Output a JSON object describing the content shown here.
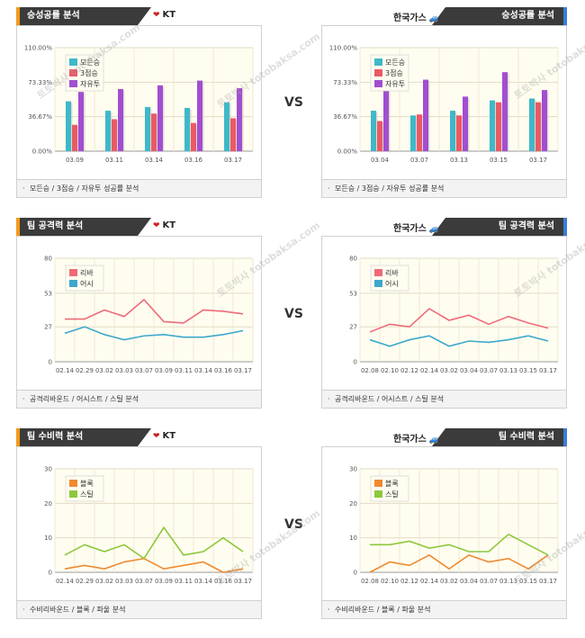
{
  "vs_label": "VS",
  "watermark": "토토박사 totobaksa.com",
  "sections": [
    {
      "left": {
        "title": "승성공률 분석",
        "team": "KT",
        "footer": "모든승 / 3점승 / 자유투 성공률 분석"
      },
      "right": {
        "title": "승성공률 분석",
        "team": "한국가스",
        "footer": "모든승 / 3점승 / 자유투 성공률 분석"
      }
    },
    {
      "left": {
        "title": "팀 공격력 분석",
        "team": "KT",
        "footer": "공격리바운드 / 어시스트 / 스틸 분석"
      },
      "right": {
        "title": "팀 공격력 분석",
        "team": "한국가스",
        "footer": "공격리바운드 / 어시스트 / 스틸 분석"
      }
    },
    {
      "left": {
        "title": "팀 수비력 분석",
        "team": "KT",
        "footer": "수비리바운드 / 블록 / 파울 분석"
      },
      "right": {
        "title": "팀 수비력 분석",
        "team": "한국가스",
        "footer": "수비리바운드 / 블록 / 파울 분석"
      }
    }
  ],
  "chart_data": [
    {
      "type": "bar",
      "categories": [
        "03.09",
        "03.11",
        "03.14",
        "03.16",
        "03.17"
      ],
      "ylim": [
        0,
        110
      ],
      "yticks": [
        "0.00%",
        "36.67%",
        "73.33%",
        "110.00%"
      ],
      "ytick_values": [
        0,
        36.67,
        73.33,
        110
      ],
      "legend": "top-left",
      "series": [
        {
          "name": "모든승",
          "color": "#3fb8c8",
          "values": [
            53,
            43,
            47,
            46,
            52
          ]
        },
        {
          "name": "3점승",
          "color": "#ea5a64",
          "values": [
            28,
            34,
            40,
            30,
            35
          ]
        },
        {
          "name": "자유투",
          "color": "#a24ed0",
          "values": [
            63,
            66,
            70,
            75,
            67
          ]
        }
      ]
    },
    {
      "type": "bar",
      "categories": [
        "03.04",
        "03.07",
        "03.13",
        "03.15",
        "03.17"
      ],
      "ylim": [
        0,
        110
      ],
      "yticks": [
        "0.00%",
        "36.67%",
        "73.33%",
        "110.00%"
      ],
      "ytick_values": [
        0,
        36.67,
        73.33,
        110
      ],
      "legend": "top-left",
      "series": [
        {
          "name": "모든승",
          "color": "#3fb8c8",
          "values": [
            43,
            38,
            43,
            54,
            56
          ]
        },
        {
          "name": "3점승",
          "color": "#ea5a64",
          "values": [
            32,
            39,
            38,
            52,
            52
          ]
        },
        {
          "name": "자유투",
          "color": "#a24ed0",
          "values": [
            65,
            76,
            58,
            84,
            65
          ]
        }
      ]
    },
    {
      "type": "line",
      "categories": [
        "02.14",
        "02.29",
        "03.02",
        "03.03",
        "03.07",
        "03.09",
        "03.11",
        "03.14",
        "03.16",
        "03.17"
      ],
      "ylim": [
        0,
        80
      ],
      "yticks": [
        "0",
        "27",
        "53",
        "80"
      ],
      "ytick_values": [
        0,
        27,
        53,
        80
      ],
      "legend": "top-left",
      "series": [
        {
          "name": "리바",
          "color": "#ee6a78",
          "values": [
            33,
            33,
            40,
            35,
            48,
            31,
            30,
            40,
            39,
            37
          ]
        },
        {
          "name": "어시",
          "color": "#3ca8cc",
          "values": [
            22,
            27,
            21,
            17,
            20,
            21,
            19,
            19,
            21,
            24
          ]
        }
      ]
    },
    {
      "type": "line",
      "categories": [
        "02.08",
        "02.10",
        "02.12",
        "02.14",
        "03.02",
        "03.04",
        "03.07",
        "03.13",
        "03.15",
        "03.17"
      ],
      "ylim": [
        0,
        80
      ],
      "yticks": [
        "0",
        "27",
        "53",
        "80"
      ],
      "ytick_values": [
        0,
        27,
        53,
        80
      ],
      "legend": "top-left",
      "series": [
        {
          "name": "리바",
          "color": "#ee6a78",
          "values": [
            23,
            29,
            27,
            41,
            32,
            36,
            29,
            35,
            30,
            26
          ]
        },
        {
          "name": "어시",
          "color": "#3ca8cc",
          "values": [
            17,
            12,
            17,
            20,
            12,
            16,
            15,
            17,
            20,
            16
          ]
        }
      ]
    },
    {
      "type": "line",
      "categories": [
        "02.14",
        "02.29",
        "03.02",
        "03.03",
        "03.07",
        "03.09",
        "03.11",
        "03.14",
        "03.16",
        "03.17"
      ],
      "ylim": [
        0,
        30
      ],
      "yticks": [
        "0",
        "10",
        "20",
        "30"
      ],
      "ytick_values": [
        0,
        10,
        20,
        30
      ],
      "legend": "top-left",
      "series": [
        {
          "name": "블록",
          "color": "#f08a30",
          "values": [
            1,
            2,
            1,
            3,
            4,
            1,
            2,
            3,
            0,
            1
          ]
        },
        {
          "name": "스틸",
          "color": "#8cc83c",
          "values": [
            5,
            8,
            6,
            8,
            4,
            13,
            5,
            6,
            10,
            6
          ]
        }
      ]
    },
    {
      "type": "line",
      "categories": [
        "02.08",
        "02.10",
        "02.12",
        "02.14",
        "03.02",
        "03.04",
        "03.07",
        "03.13",
        "03.15",
        "03.17"
      ],
      "ylim": [
        0,
        30
      ],
      "yticks": [
        "0",
        "10",
        "20",
        "30"
      ],
      "ytick_values": [
        0,
        10,
        20,
        30
      ],
      "legend": "top-left",
      "series": [
        {
          "name": "블록",
          "color": "#f08a30",
          "values": [
            0,
            3,
            2,
            5,
            1,
            5,
            3,
            4,
            1,
            5
          ]
        },
        {
          "name": "스틸",
          "color": "#8cc83c",
          "values": [
            8,
            8,
            9,
            7,
            8,
            6,
            6,
            11,
            8,
            5
          ]
        }
      ]
    }
  ]
}
